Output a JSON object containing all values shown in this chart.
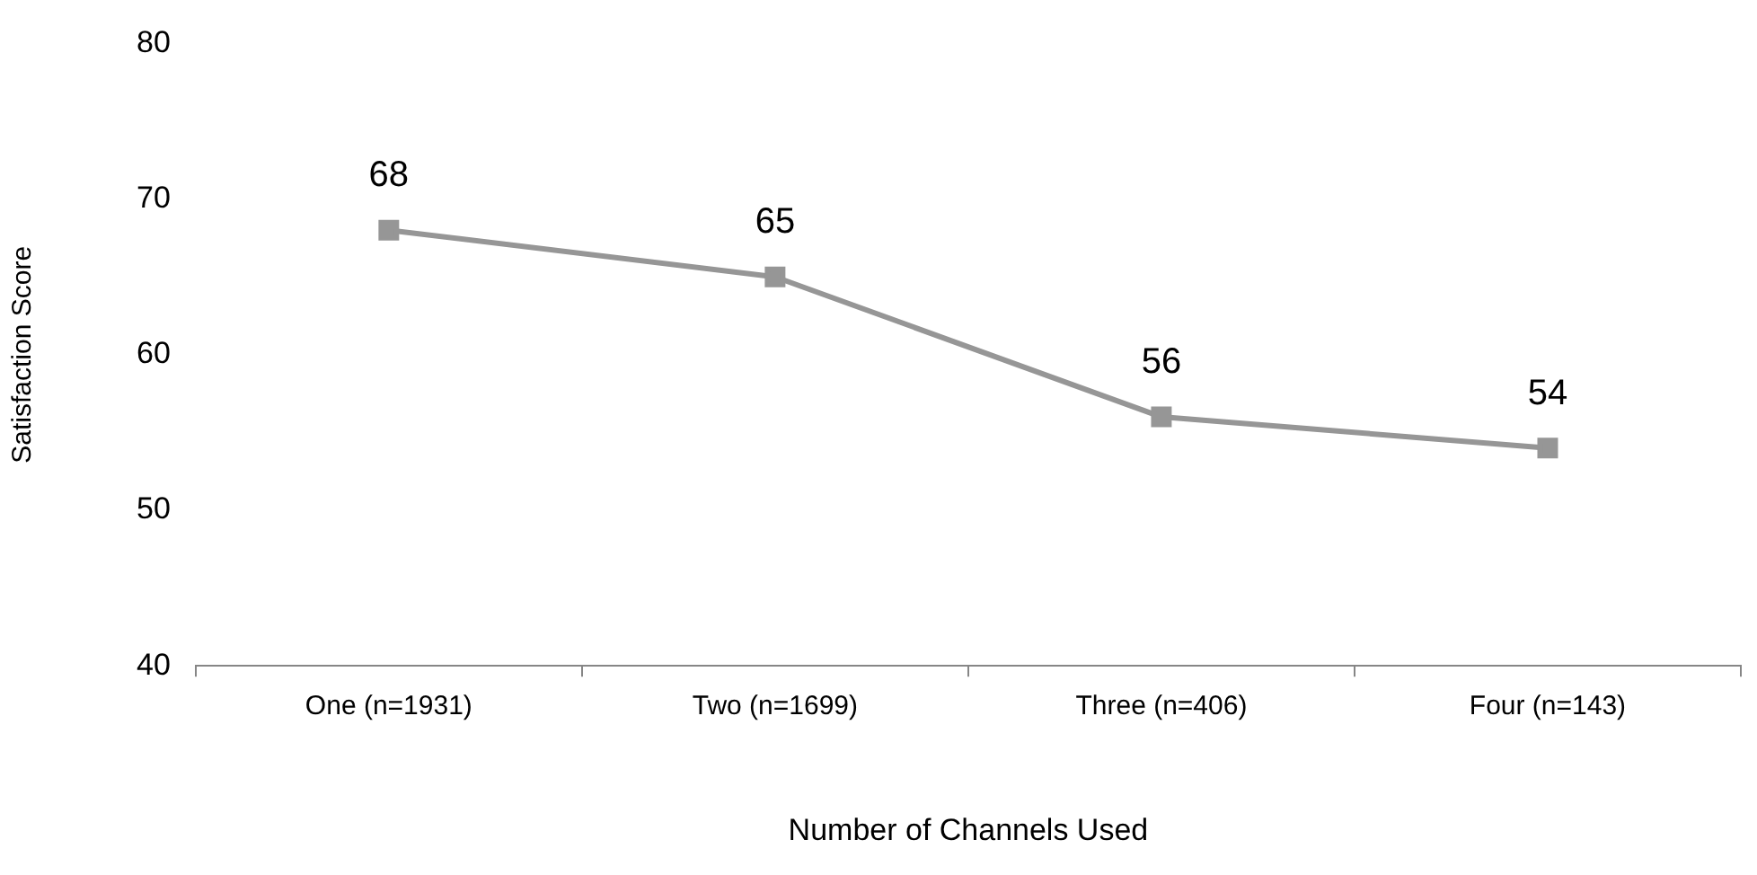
{
  "chart_data": {
    "type": "line",
    "xlabel": "Number of Channels Used",
    "ylabel": "Satisfaction Score",
    "categories": [
      "One (n=1931)",
      "Two (n=1699)",
      "Three (n=406)",
      "Four (n=143)"
    ],
    "series": [
      {
        "color": "#969696",
        "values": [
          68,
          65,
          56,
          54
        ]
      }
    ],
    "ylim": [
      40,
      80
    ],
    "yticks": [
      40,
      50,
      60,
      70,
      80
    ],
    "grid": false,
    "legend": false,
    "marker": "square",
    "line_style": "solid",
    "data_labels": true
  }
}
